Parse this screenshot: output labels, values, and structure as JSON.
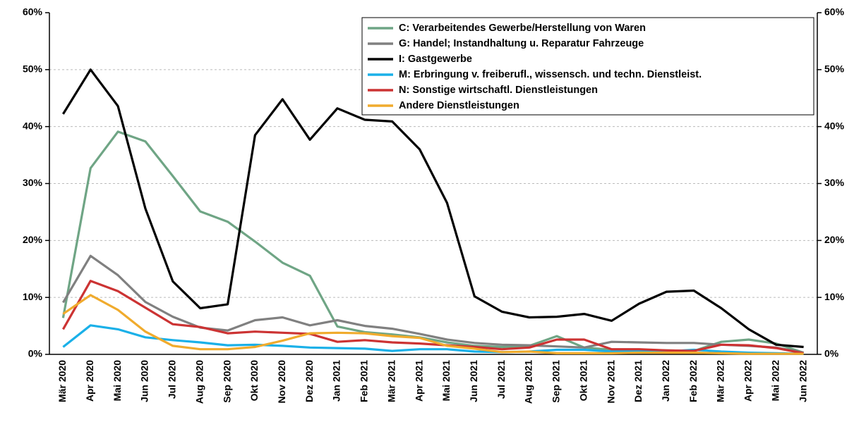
{
  "chart_data": {
    "type": "line",
    "categories": [
      "Mär 2020",
      "Apr 2020",
      "Mai 2020",
      "Jun 2020",
      "Jul 2020",
      "Aug 2020",
      "Sep 2020",
      "Okt 2020",
      "Nov 2020",
      "Dez 2020",
      "Jan 2021",
      "Feb 2021",
      "Mär 2021",
      "Apr 2021",
      "Mai 2021",
      "Jun 2021",
      "Jul 2021",
      "Aug 2021",
      "Sep 2021",
      "Okt 2021",
      "Nov 2021",
      "Dez 2021",
      "Jan 2022",
      "Feb 2022",
      "Mär 2022",
      "Apr 2022",
      "Mai 2022",
      "Jun 2022"
    ],
    "series": [
      {
        "name": "C: Verarbeitendes Gewerbe/Herstellung von Waren",
        "color": "#6fa585",
        "values": [
          6.4,
          32.7,
          39.1,
          37.4,
          31.3,
          25.1,
          23.3,
          19.8,
          16.1,
          13.8,
          4.9,
          3.9,
          3.5,
          3.0,
          2.1,
          1.5,
          1.3,
          1.5,
          3.2,
          1.2,
          0.8,
          0.8,
          0.7,
          0.6,
          2.2,
          2.6,
          1.9,
          0.3
        ]
      },
      {
        "name": "G: Handel; Instandhaltung u. Reparatur Fahrzeuge",
        "color": "#808080",
        "values": [
          9.1,
          17.3,
          13.9,
          9.2,
          6.6,
          4.7,
          4.2,
          6.0,
          6.5,
          5.1,
          6.0,
          5.0,
          4.5,
          3.6,
          2.6,
          2.0,
          1.7,
          1.6,
          1.4,
          1.2,
          2.2,
          2.1,
          2.0,
          2.0,
          1.7,
          1.5,
          1.2,
          0.3
        ]
      },
      {
        "name": "I: Gastgewerbe",
        "color": "#000000",
        "values": [
          42.2,
          50.0,
          43.6,
          25.6,
          12.8,
          8.1,
          8.8,
          38.5,
          44.8,
          37.7,
          43.2,
          41.2,
          40.9,
          36.0,
          26.6,
          10.2,
          7.5,
          6.5,
          6.6,
          7.1,
          5.9,
          8.9,
          11.0,
          11.2,
          8.1,
          4.4,
          1.7,
          1.3
        ]
      },
      {
        "name": "M: Erbringung v. freiberufl., wissensch. und techn. Dienstleist.",
        "color": "#1ab0e8",
        "values": [
          1.3,
          5.1,
          4.4,
          3.0,
          2.5,
          2.1,
          1.6,
          1.7,
          1.5,
          1.2,
          1.1,
          1.0,
          0.6,
          0.9,
          0.9,
          0.5,
          0.4,
          0.5,
          0.8,
          0.8,
          0.5,
          0.5,
          0.5,
          0.8,
          0.5,
          0.3,
          0.2,
          0.1
        ]
      },
      {
        "name": "N: Sonstige wirtschaftl. Dienstleistungen",
        "color": "#cc3333",
        "values": [
          4.4,
          12.9,
          11.1,
          8.2,
          5.3,
          4.8,
          3.7,
          4.0,
          3.8,
          3.6,
          2.2,
          2.5,
          2.1,
          1.9,
          1.6,
          1.3,
          0.9,
          1.2,
          2.6,
          2.6,
          0.9,
          0.9,
          0.7,
          0.6,
          1.7,
          1.6,
          1.1,
          0.2
        ]
      },
      {
        "name": "Andere Dienstleistungen",
        "color": "#f0ab2d",
        "values": [
          7.1,
          10.4,
          7.8,
          4.0,
          1.5,
          0.9,
          0.9,
          1.3,
          2.4,
          3.7,
          3.8,
          3.7,
          3.2,
          2.9,
          1.5,
          1.0,
          0.4,
          0.5,
          0.2,
          0.2,
          0.2,
          0.3,
          0.3,
          0.3,
          0.2,
          0.1,
          0.1,
          0.1
        ]
      }
    ],
    "ylim": [
      0,
      60
    ],
    "yticks": [
      {
        "value": 0,
        "label": "0%"
      },
      {
        "value": 10,
        "label": "10%"
      },
      {
        "value": 20,
        "label": "20%"
      },
      {
        "value": 30,
        "label": "30%"
      },
      {
        "value": 40,
        "label": "40%"
      },
      {
        "value": 50,
        "label": "50%"
      },
      {
        "value": 60,
        "label": "60%"
      }
    ],
    "y2lim": [
      0,
      60
    ],
    "y2ticks": [
      {
        "value": 0,
        "label": "0%"
      },
      {
        "value": 10,
        "label": "10%"
      },
      {
        "value": 20,
        "label": "20%"
      },
      {
        "value": 30,
        "label": "30%"
      },
      {
        "value": 40,
        "label": "40%"
      },
      {
        "value": 50,
        "label": "50%"
      },
      {
        "value": 60,
        "label": "60%"
      }
    ],
    "grid": true,
    "legend": "upper right"
  }
}
